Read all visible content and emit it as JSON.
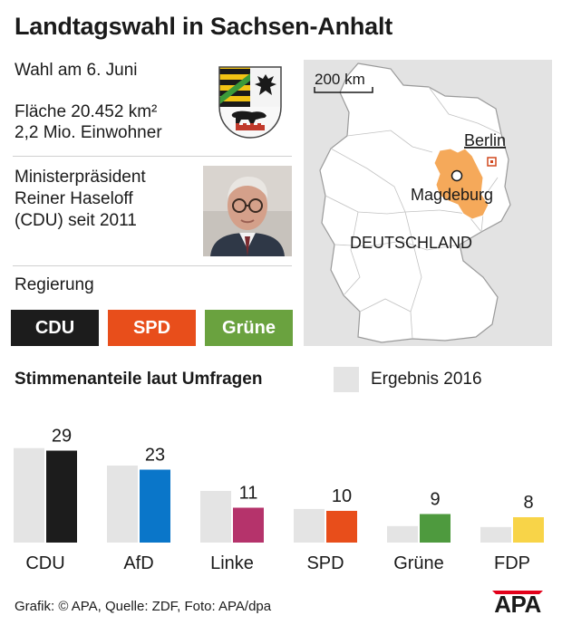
{
  "header": {
    "title": "Landtagswahl in Sachsen-Anhalt"
  },
  "info": {
    "election_date": "Wahl am 6. Juni",
    "area": "Fläche 20.452 km²",
    "population": "2,2 Mio. Einwohner",
    "minister_line1": "Ministerpräsident",
    "minister_line2": "Reiner Haseloff",
    "minister_line3": "(CDU) seit 2011"
  },
  "government": {
    "label": "Regierung",
    "parties": [
      {
        "name": "CDU",
        "color": "#1c1c1c"
      },
      {
        "name": "SPD",
        "color": "#e84e1b"
      },
      {
        "name": "Grüne",
        "color": "#6aa23f"
      }
    ]
  },
  "map": {
    "scale_label": "200 km",
    "city_capital": "Berlin",
    "city_state": "Magdeburg",
    "country_label": "DEUTSCHLAND",
    "state_color": "#f5a95a"
  },
  "legend": {
    "title": "Stimmenanteile laut Umfragen",
    "previous_label": "Ergebnis 2016",
    "previous_color": "#e4e4e4"
  },
  "chart_data": {
    "type": "bar",
    "categories": [
      "CDU",
      "AfD",
      "Linke",
      "SPD",
      "Grüne",
      "FDP"
    ],
    "series": [
      {
        "name": "Ergebnis 2016",
        "values": [
          29.8,
          24.3,
          16.3,
          10.6,
          5.2,
          4.9
        ],
        "color": "#e4e4e4"
      },
      {
        "values": [
          29,
          23,
          11,
          10,
          9,
          8
        ],
        "colors": [
          "#1c1c1c",
          "#0a76c9",
          "#b5336b",
          "#e84e1b",
          "#4e9a3e",
          "#f8d448"
        ]
      }
    ],
    "data_labels": [
      "29",
      "23",
      "11",
      "10",
      "9",
      "8"
    ],
    "ylim": [
      0,
      32
    ]
  },
  "footer": {
    "credit": "Grafik: © APA, Quelle: ZDF, Foto: APA/dpa",
    "logo_text": "APA"
  }
}
